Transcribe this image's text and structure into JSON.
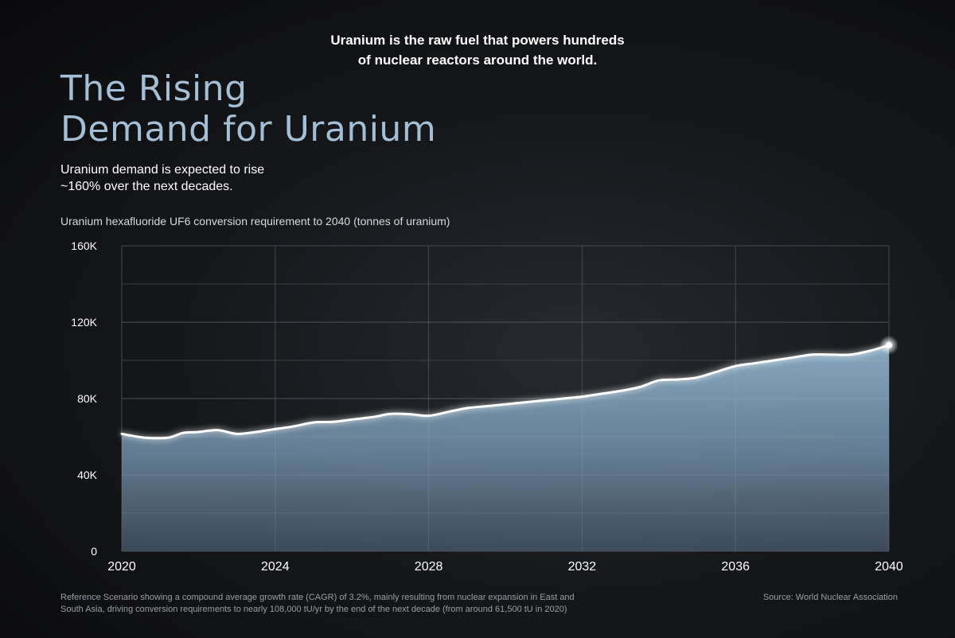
{
  "intro": {
    "line1": "Uranium is the raw fuel that powers hundreds",
    "line2": "of nuclear reactors around the world."
  },
  "headline": {
    "line1": "The Rising",
    "line2": "Demand for Uranium"
  },
  "subhead": {
    "line1": "Uranium demand is expected to rise",
    "line2": "~160% over the next decades."
  },
  "footnote": {
    "line1": "Reference Scenario showing a compound average growth rate (CAGR) of 3.2%, mainly resulting from nuclear expansion in East and",
    "line2": "South Asia, driving conversion requirements to nearly 108,000 tU/yr by the end of the next decade (from around 61,500 tU in 2020)"
  },
  "source": "Source: World Nuclear Association",
  "colors": {
    "accent": "#a3bfd6",
    "area_top": "#8eb0c8",
    "area_bottom": "#4a5b6e",
    "line": "#ffffff"
  },
  "chart_data": {
    "type": "area",
    "title": "Uranium hexafluoride UF6 conversion requirement to 2040 (tonnes of uranium)",
    "xlim": [
      2020,
      2040
    ],
    "ylim": [
      0,
      160000
    ],
    "x_ticks": [
      2020,
      2024,
      2028,
      2032,
      2036,
      2040
    ],
    "x_tick_labels": [
      "2020",
      "2024",
      "2028",
      "2032",
      "2036",
      "2040"
    ],
    "y_ticks": [
      0,
      40000,
      80000,
      120000,
      160000
    ],
    "y_tick_labels": [
      "0",
      "40K",
      "80K",
      "120K",
      "160K"
    ],
    "grid": true,
    "legend": "none",
    "series": [
      {
        "x": [
          2020,
          2020.6,
          2021.2,
          2021.6,
          2022,
          2022.5,
          2023,
          2023.5,
          2024,
          2024.5,
          2025,
          2025.5,
          2026,
          2026.6,
          2027,
          2027.5,
          2028,
          2028.5,
          2029,
          2029.5,
          2030,
          2030.5,
          2031,
          2031.5,
          2032,
          2032.5,
          2033,
          2033.5,
          2034,
          2034.5,
          2035,
          2035.5,
          2036,
          2036.5,
          2037,
          2037.5,
          2038,
          2038.5,
          2039,
          2039.5,
          2040
        ],
        "y": [
          61500,
          59500,
          59500,
          62000,
          62500,
          63500,
          61500,
          62500,
          64000,
          65500,
          67500,
          67800,
          69000,
          70500,
          72000,
          71800,
          71000,
          73000,
          75000,
          76000,
          77000,
          78000,
          79000,
          80000,
          81000,
          82500,
          84000,
          86000,
          89500,
          90000,
          91000,
          94000,
          97000,
          98500,
          100000,
          101500,
          103000,
          103000,
          103000,
          105000,
          108000
        ]
      }
    ]
  }
}
